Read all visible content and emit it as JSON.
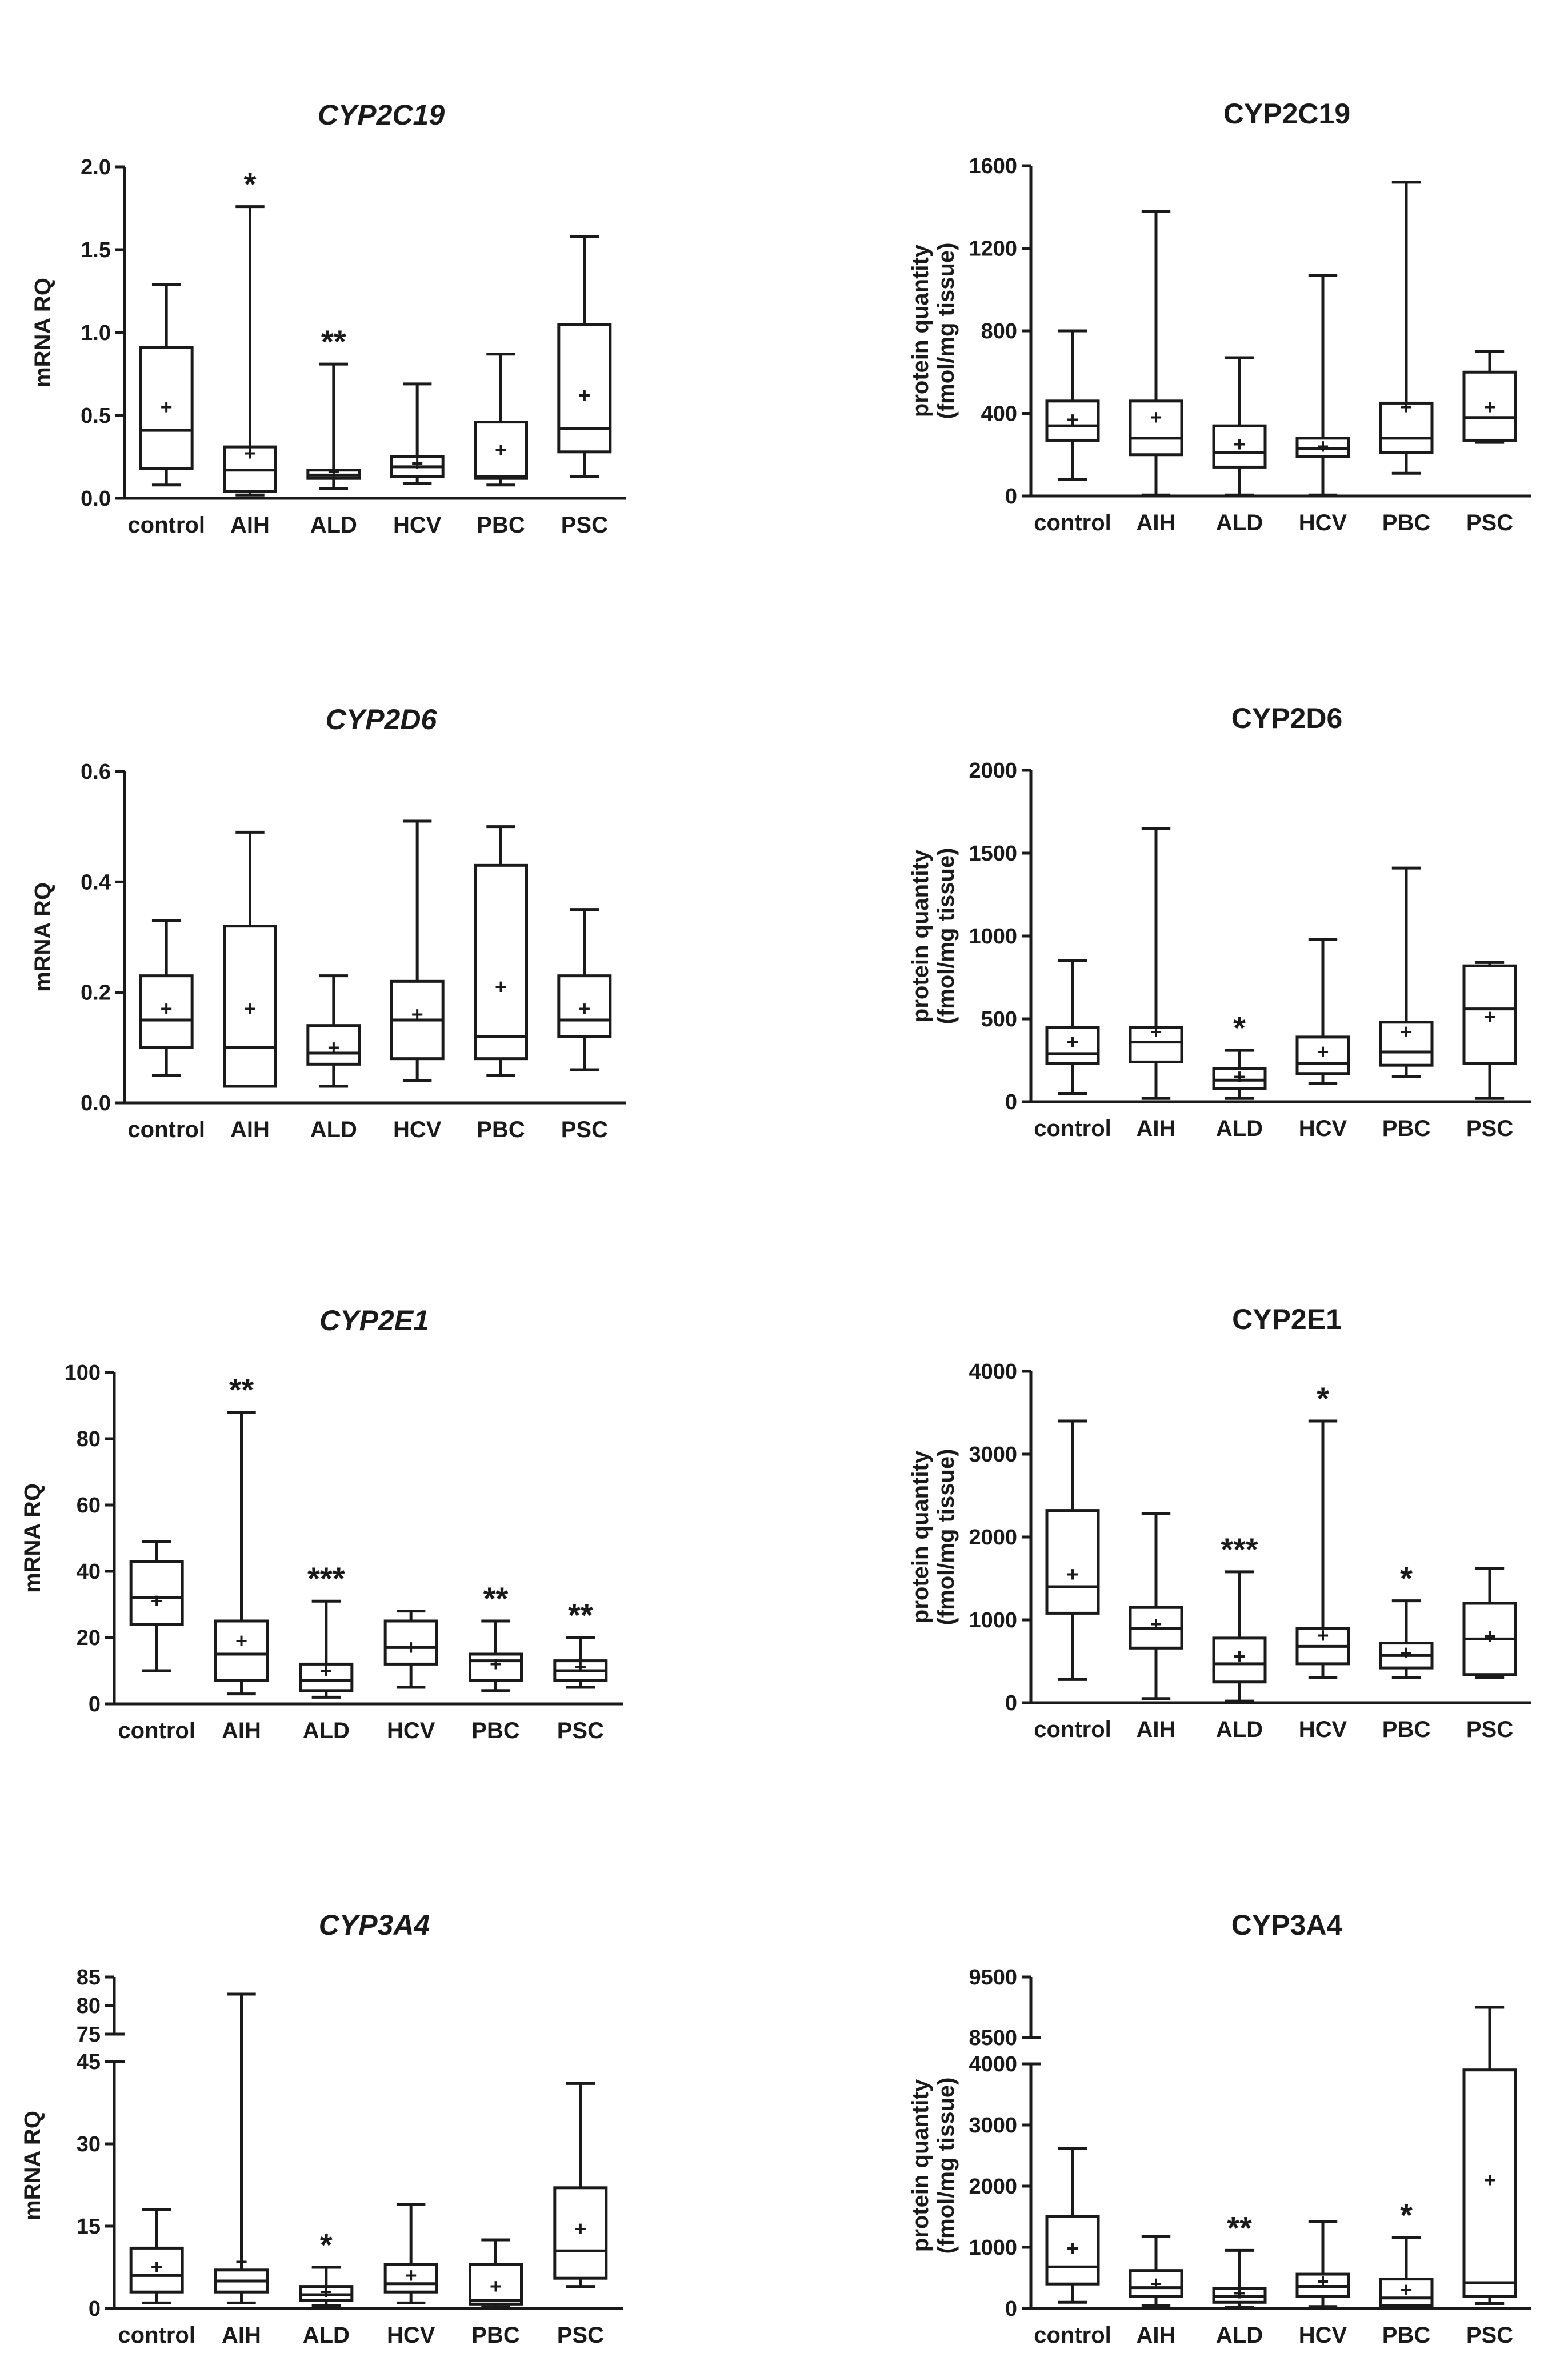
{
  "chart_data": [
    {
      "id": "mrna-cyp2c19",
      "type": "boxplot",
      "title": "CYP2C19",
      "title_italic": true,
      "ylabel": [
        "mRNA RQ"
      ],
      "ylim": [
        0,
        2.0
      ],
      "yticks": [
        "0.0",
        "0.5",
        "1.0",
        "1.5",
        "2.0"
      ],
      "categories": [
        "control",
        "AIH",
        "ALD",
        "HCV",
        "PBC",
        "PSC"
      ],
      "boxes": [
        {
          "min": 0.08,
          "q1": 0.18,
          "median": 0.41,
          "q3": 0.91,
          "max": 1.29,
          "mean": 0.55,
          "sig": ""
        },
        {
          "min": 0.02,
          "q1": 0.04,
          "median": 0.17,
          "q3": 0.31,
          "max": 1.76,
          "mean": 0.27,
          "sig": "*"
        },
        {
          "min": 0.06,
          "q1": 0.12,
          "median": 0.14,
          "q3": 0.17,
          "max": 0.81,
          "mean": 0.16,
          "sig": "**"
        },
        {
          "min": 0.09,
          "q1": 0.13,
          "median": 0.19,
          "q3": 0.25,
          "max": 0.69,
          "mean": 0.21,
          "sig": ""
        },
        {
          "min": 0.08,
          "q1": 0.12,
          "median": 0.13,
          "q3": 0.46,
          "max": 0.87,
          "mean": 0.29,
          "sig": ""
        },
        {
          "min": 0.13,
          "q1": 0.28,
          "median": 0.42,
          "q3": 1.05,
          "max": 1.58,
          "mean": 0.62,
          "sig": ""
        }
      ]
    },
    {
      "id": "prot-cyp2c19",
      "type": "boxplot",
      "title": "CYP2C19",
      "title_italic": false,
      "ylabel": [
        "protein quantity",
        "(fmol/mg tissue)"
      ],
      "ylim": [
        0,
        1600
      ],
      "yticks": [
        "0",
        "400",
        "800",
        "1200",
        "1600"
      ],
      "categories": [
        "control",
        "AIH",
        "ALD",
        "HCV",
        "PBC",
        "PSC"
      ],
      "boxes": [
        {
          "min": 80,
          "q1": 270,
          "median": 340,
          "q3": 460,
          "max": 800,
          "mean": 370,
          "sig": ""
        },
        {
          "min": 5,
          "q1": 200,
          "median": 280,
          "q3": 460,
          "max": 1380,
          "mean": 380,
          "sig": ""
        },
        {
          "min": 5,
          "q1": 140,
          "median": 210,
          "q3": 340,
          "max": 670,
          "mean": 250,
          "sig": ""
        },
        {
          "min": 5,
          "q1": 190,
          "median": 230,
          "q3": 280,
          "max": 1070,
          "mean": 240,
          "sig": ""
        },
        {
          "min": 110,
          "q1": 210,
          "median": 280,
          "q3": 450,
          "max": 1520,
          "mean": 430,
          "sig": ""
        },
        {
          "min": 260,
          "q1": 270,
          "median": 380,
          "q3": 600,
          "max": 700,
          "mean": 430,
          "sig": ""
        }
      ]
    },
    {
      "id": "mrna-cyp2d6",
      "type": "boxplot",
      "title": "CYP2D6",
      "title_italic": true,
      "ylabel": [
        "mRNA RQ"
      ],
      "ylim": [
        0,
        0.6
      ],
      "yticks": [
        "0.0",
        "0.2",
        "0.4",
        "0.6"
      ],
      "categories": [
        "control",
        "AIH",
        "ALD",
        "HCV",
        "PBC",
        "PSC"
      ],
      "boxes": [
        {
          "min": 0.05,
          "q1": 0.1,
          "median": 0.15,
          "q3": 0.23,
          "max": 0.33,
          "mean": 0.17,
          "sig": ""
        },
        {
          "min": 0.03,
          "q1": 0.03,
          "median": 0.1,
          "q3": 0.32,
          "max": 0.49,
          "mean": 0.17,
          "sig": ""
        },
        {
          "min": 0.03,
          "q1": 0.07,
          "median": 0.09,
          "q3": 0.14,
          "max": 0.23,
          "mean": 0.1,
          "sig": ""
        },
        {
          "min": 0.04,
          "q1": 0.08,
          "median": 0.15,
          "q3": 0.22,
          "max": 0.51,
          "mean": 0.16,
          "sig": ""
        },
        {
          "min": 0.05,
          "q1": 0.08,
          "median": 0.12,
          "q3": 0.43,
          "max": 0.5,
          "mean": 0.21,
          "sig": ""
        },
        {
          "min": 0.06,
          "q1": 0.12,
          "median": 0.15,
          "q3": 0.23,
          "max": 0.35,
          "mean": 0.17,
          "sig": ""
        }
      ]
    },
    {
      "id": "prot-cyp2d6",
      "type": "boxplot",
      "title": "CYP2D6",
      "title_italic": false,
      "ylabel": [
        "protein quantity",
        "(fmol/mg tissue)"
      ],
      "ylim": [
        0,
        2000
      ],
      "yticks": [
        "0",
        "500",
        "1000",
        "1500",
        "2000"
      ],
      "categories": [
        "control",
        "AIH",
        "ALD",
        "HCV",
        "PBC",
        "PSC"
      ],
      "boxes": [
        {
          "min": 50,
          "q1": 230,
          "median": 290,
          "q3": 450,
          "max": 850,
          "mean": 360,
          "sig": ""
        },
        {
          "min": 20,
          "q1": 240,
          "median": 360,
          "q3": 450,
          "max": 1650,
          "mean": 420,
          "sig": ""
        },
        {
          "min": 20,
          "q1": 80,
          "median": 130,
          "q3": 200,
          "max": 310,
          "mean": 150,
          "sig": "*"
        },
        {
          "min": 110,
          "q1": 170,
          "median": 230,
          "q3": 390,
          "max": 980,
          "mean": 300,
          "sig": ""
        },
        {
          "min": 150,
          "q1": 220,
          "median": 300,
          "q3": 480,
          "max": 1410,
          "mean": 420,
          "sig": ""
        },
        {
          "min": 20,
          "q1": 230,
          "median": 560,
          "q3": 820,
          "max": 840,
          "mean": 510,
          "sig": ""
        }
      ]
    },
    {
      "id": "mrna-cyp2e1",
      "type": "boxplot",
      "title": "CYP2E1",
      "title_italic": true,
      "ylabel": [
        "mRNA RQ"
      ],
      "ylim": [
        0,
        100
      ],
      "yticks": [
        "0",
        "20",
        "40",
        "60",
        "80",
        "100"
      ],
      "categories": [
        "control",
        "AIH",
        "ALD",
        "HCV",
        "PBC",
        "PSC"
      ],
      "boxes": [
        {
          "min": 10,
          "q1": 24,
          "median": 32,
          "q3": 43,
          "max": 49,
          "mean": 31,
          "sig": ""
        },
        {
          "min": 3,
          "q1": 7,
          "median": 15,
          "q3": 25,
          "max": 88,
          "mean": 19,
          "sig": "**"
        },
        {
          "min": 2,
          "q1": 4,
          "median": 7,
          "q3": 12,
          "max": 31,
          "mean": 10,
          "sig": "***"
        },
        {
          "min": 5,
          "q1": 12,
          "median": 17,
          "q3": 25,
          "max": 28,
          "mean": 17,
          "sig": ""
        },
        {
          "min": 4,
          "q1": 7,
          "median": 13,
          "q3": 15,
          "max": 25,
          "mean": 12,
          "sig": "**"
        },
        {
          "min": 5,
          "q1": 7,
          "median": 10,
          "q3": 13,
          "max": 20,
          "mean": 11,
          "sig": "**"
        }
      ]
    },
    {
      "id": "prot-cyp2e1",
      "type": "boxplot",
      "title": "CYP2E1",
      "title_italic": false,
      "ylabel": [
        "protein quantity",
        "(fmol/mg tissue)"
      ],
      "ylim": [
        0,
        4000
      ],
      "yticks": [
        "0",
        "1000",
        "2000",
        "3000",
        "4000"
      ],
      "categories": [
        "control",
        "AIH",
        "ALD",
        "HCV",
        "PBC",
        "PSC"
      ],
      "boxes": [
        {
          "min": 280,
          "q1": 1080,
          "median": 1400,
          "q3": 2320,
          "max": 3400,
          "mean": 1550,
          "sig": ""
        },
        {
          "min": 50,
          "q1": 660,
          "median": 900,
          "q3": 1150,
          "max": 2280,
          "mean": 950,
          "sig": ""
        },
        {
          "min": 20,
          "q1": 250,
          "median": 470,
          "q3": 780,
          "max": 1580,
          "mean": 560,
          "sig": "***"
        },
        {
          "min": 300,
          "q1": 470,
          "median": 680,
          "q3": 900,
          "max": 3400,
          "mean": 810,
          "sig": "*"
        },
        {
          "min": 300,
          "q1": 420,
          "median": 570,
          "q3": 720,
          "max": 1230,
          "mean": 600,
          "sig": "*"
        },
        {
          "min": 300,
          "q1": 340,
          "median": 770,
          "q3": 1200,
          "max": 1620,
          "mean": 800,
          "sig": ""
        }
      ]
    },
    {
      "id": "mrna-cyp3a4",
      "type": "boxplot",
      "title": "CYP3A4",
      "title_italic": true,
      "ylabel": [
        "mRNA RQ"
      ],
      "ylim": [
        0,
        85
      ],
      "axis_break": [
        45,
        75
      ],
      "yticks": [
        "0",
        "15",
        "30",
        "45"
      ],
      "yticks_upper": [
        "75",
        "80",
        "85"
      ],
      "categories": [
        "control",
        "AIH",
        "ALD",
        "HCV",
        "PBC",
        "PSC"
      ],
      "boxes": [
        {
          "min": 1,
          "q1": 3,
          "median": 6,
          "q3": 11,
          "max": 18,
          "mean": 7.5,
          "sig": ""
        },
        {
          "min": 1,
          "q1": 3,
          "median": 5,
          "q3": 7,
          "max": 82,
          "mean": 8.5,
          "sig": ""
        },
        {
          "min": 0.5,
          "q1": 1.5,
          "median": 2.5,
          "q3": 4,
          "max": 7.5,
          "mean": 3,
          "sig": "*"
        },
        {
          "min": 1,
          "q1": 3,
          "median": 4.5,
          "q3": 8,
          "max": 19,
          "mean": 6,
          "sig": ""
        },
        {
          "min": 0.3,
          "q1": 0.8,
          "median": 1.5,
          "q3": 8,
          "max": 12.5,
          "mean": 4,
          "sig": ""
        },
        {
          "min": 4,
          "q1": 5.5,
          "median": 10.5,
          "q3": 22,
          "max": 41,
          "mean": 14.5,
          "sig": ""
        }
      ]
    },
    {
      "id": "prot-cyp3a4",
      "type": "boxplot",
      "title": "CYP3A4",
      "title_italic": false,
      "ylabel": [
        "protein quantity",
        "(fmol/mg tissue)"
      ],
      "ylim": [
        0,
        9500
      ],
      "axis_break": [
        4000,
        8500
      ],
      "yticks": [
        "0",
        "1000",
        "2000",
        "3000",
        "4000"
      ],
      "yticks_upper": [
        "8500",
        "9500"
      ],
      "categories": [
        "control",
        "AIH",
        "ALD",
        "HCV",
        "PBC",
        "PSC"
      ],
      "boxes": [
        {
          "min": 100,
          "q1": 400,
          "median": 680,
          "q3": 1500,
          "max": 2620,
          "mean": 980,
          "sig": ""
        },
        {
          "min": 50,
          "q1": 200,
          "median": 340,
          "q3": 620,
          "max": 1180,
          "mean": 400,
          "sig": ""
        },
        {
          "min": 20,
          "q1": 100,
          "median": 200,
          "q3": 330,
          "max": 950,
          "mean": 250,
          "sig": "**"
        },
        {
          "min": 30,
          "q1": 200,
          "median": 360,
          "q3": 560,
          "max": 1420,
          "mean": 440,
          "sig": ""
        },
        {
          "min": 10,
          "q1": 50,
          "median": 170,
          "q3": 480,
          "max": 1160,
          "mean": 300,
          "sig": "*"
        },
        {
          "min": 80,
          "q1": 200,
          "median": 420,
          "q3": 3900,
          "max": 9000,
          "mean": 2100,
          "sig": ""
        }
      ]
    }
  ]
}
